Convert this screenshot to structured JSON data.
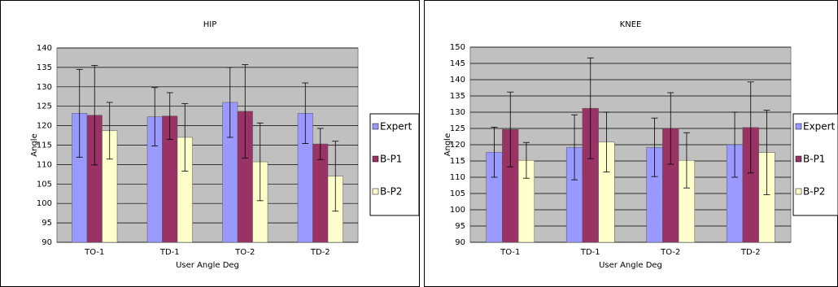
{
  "chart_data": [
    {
      "type": "bar",
      "title": "HIP",
      "x_label": "User Angle Deg",
      "y_label": "Angle",
      "categories": [
        "TO-1",
        "TD-1",
        "TO-2",
        "TD-2"
      ],
      "series": [
        {
          "name": "Expert",
          "color": "#9999ff",
          "values": [
            123.2,
            122.3,
            126,
            123.2
          ],
          "errors": [
            11.3,
            7.5,
            9,
            7.8
          ]
        },
        {
          "name": "B-P1",
          "color": "#993366",
          "values": [
            122.7,
            122.5,
            123.7,
            115.3
          ],
          "errors": [
            12.8,
            6,
            12,
            4
          ]
        },
        {
          "name": "B-P2",
          "color": "#ffffcc",
          "values": [
            118.7,
            117,
            110.7,
            107
          ],
          "errors": [
            7.3,
            8.7,
            10,
            9
          ]
        }
      ],
      "ylim": [
        90,
        140
      ],
      "yticks": [
        90,
        95,
        100,
        105,
        110,
        115,
        120,
        125,
        130,
        135,
        140
      ],
      "grid": true,
      "legend": "right"
    },
    {
      "type": "bar",
      "title": "KNEE",
      "x_label": "User Angle Deg",
      "y_label": "Angle",
      "categories": [
        "TO-1",
        "TD-1",
        "TO-2",
        "TD-2"
      ],
      "series": [
        {
          "name": "Expert",
          "color": "#9999ff",
          "values": [
            117.7,
            119.2,
            119.2,
            120
          ],
          "errors": [
            7.7,
            10,
            9,
            10
          ]
        },
        {
          "name": "B-P1",
          "color": "#993366",
          "values": [
            124.7,
            131.2,
            125,
            125.3
          ],
          "errors": [
            11.5,
            15.5,
            11,
            14
          ]
        },
        {
          "name": "B-P2",
          "color": "#ffffcc",
          "values": [
            115.2,
            120.8,
            115.2,
            117.6
          ],
          "errors": [
            5.5,
            9.2,
            8.5,
            13
          ]
        }
      ],
      "ylim": [
        90,
        150
      ],
      "yticks": [
        90,
        95,
        100,
        105,
        110,
        115,
        120,
        125,
        130,
        135,
        140,
        145,
        150
      ],
      "grid": true,
      "legend": "right"
    }
  ]
}
